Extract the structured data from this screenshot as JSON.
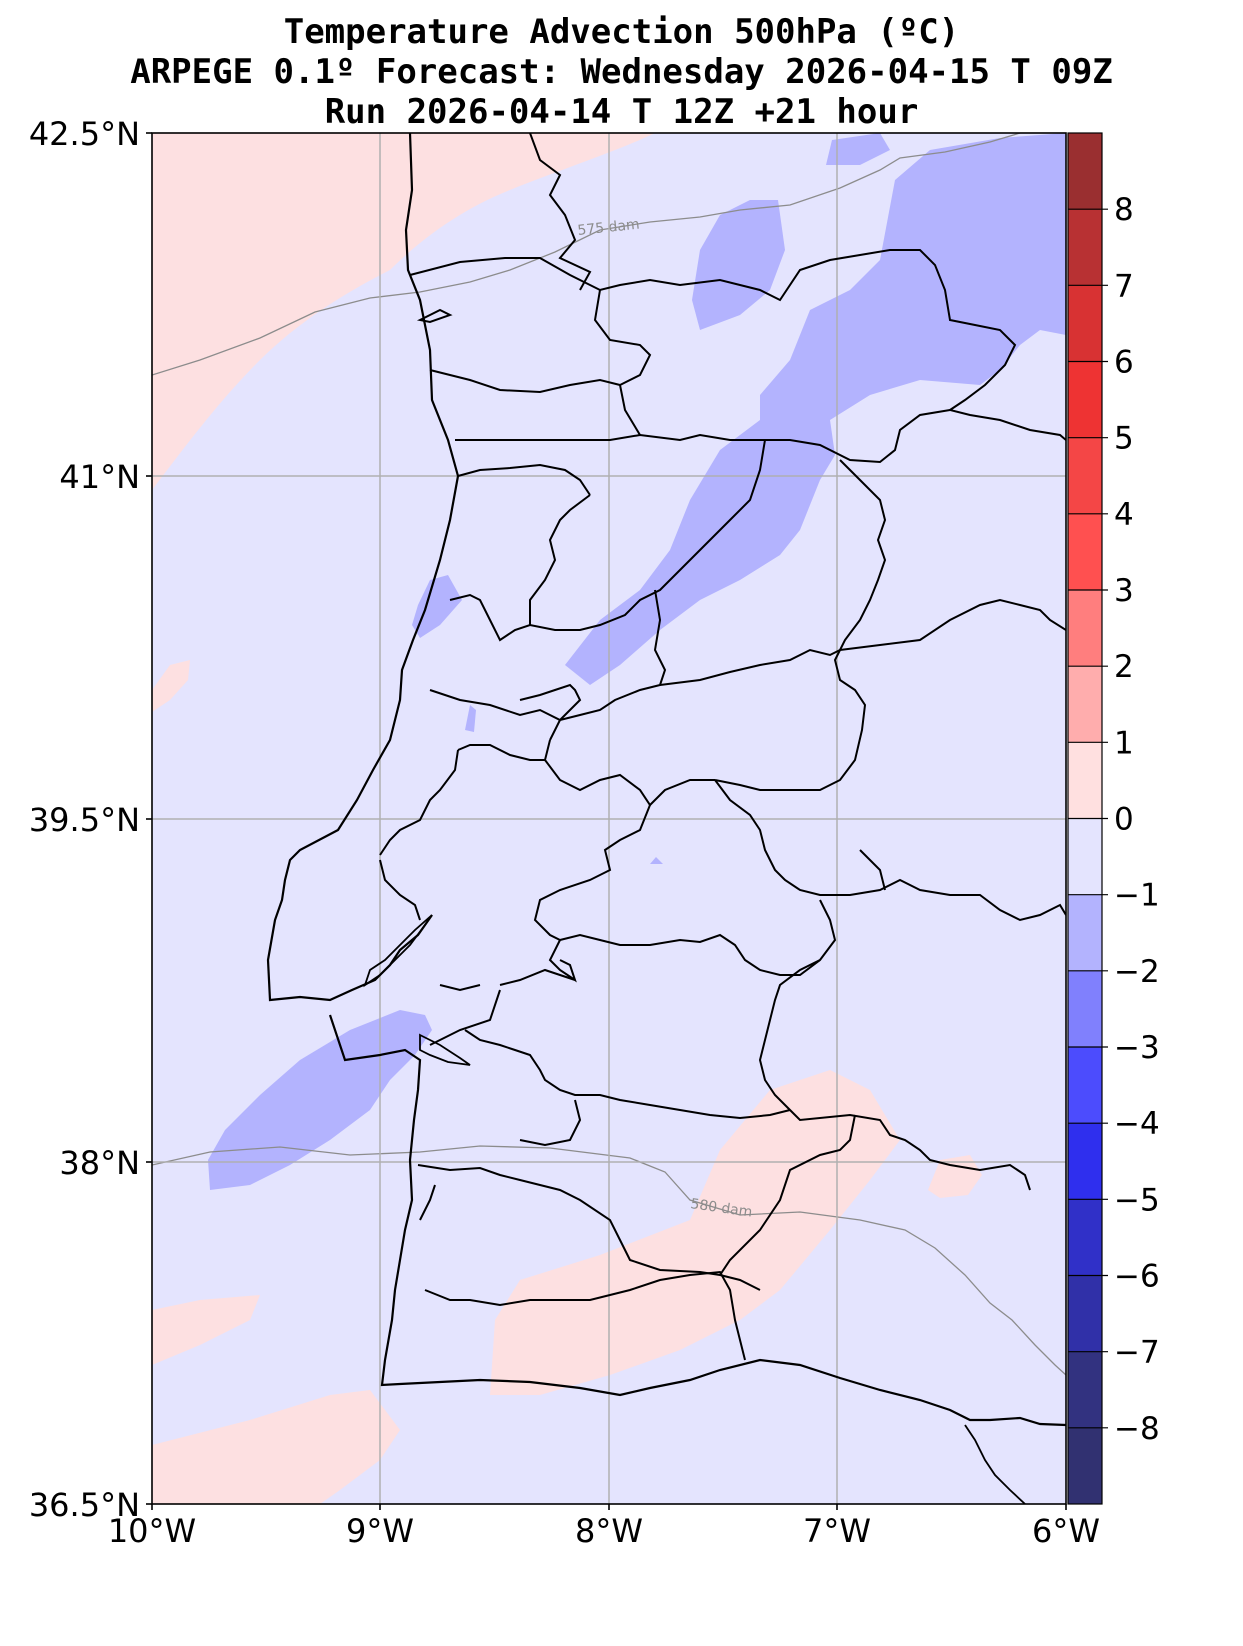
{
  "title": {
    "line1": "Temperature Advection  500hPa (ºC)",
    "line2": "ARPEGE 0.1º Forecast: Wednesday 2026-04-15 T 09Z",
    "line3": "Run 2026-04-14 T 12Z +21 hour"
  },
  "lat_labels": [
    "42.5°N",
    "41°N",
    "39.5°N",
    "38°N",
    "36.5°N"
  ],
  "lon_labels": [
    "10°W",
    "9°W",
    "8°W",
    "7°W",
    "6°W"
  ],
  "contour_labels": {
    "c575": "575 dam",
    "c580": "580 dam"
  },
  "colorbar": {
    "ticks": [
      "8",
      "7",
      "6",
      "5",
      "4",
      "3",
      "2",
      "1",
      "0",
      "−1",
      "−2",
      "−3",
      "−4",
      "−5",
      "−6",
      "−7",
      "−8"
    ],
    "colors": [
      "#9a2f30",
      "#b83133",
      "#d83233",
      "#ee3333",
      "#f44646",
      "#ff5050",
      "#ff7e7e",
      "#ffadad",
      "#ffe0e0",
      "#e4e4fe",
      "#b3b3fe",
      "#8080fd",
      "#4c4cfd",
      "#2f2fee",
      "#3030c8",
      "#3030a8",
      "#323280",
      "#313171"
    ]
  },
  "colors": {
    "base_negative": "#e4e4fe",
    "light_positive": "#fde0e1",
    "moderate_negative": "#b3b3fe"
  }
}
